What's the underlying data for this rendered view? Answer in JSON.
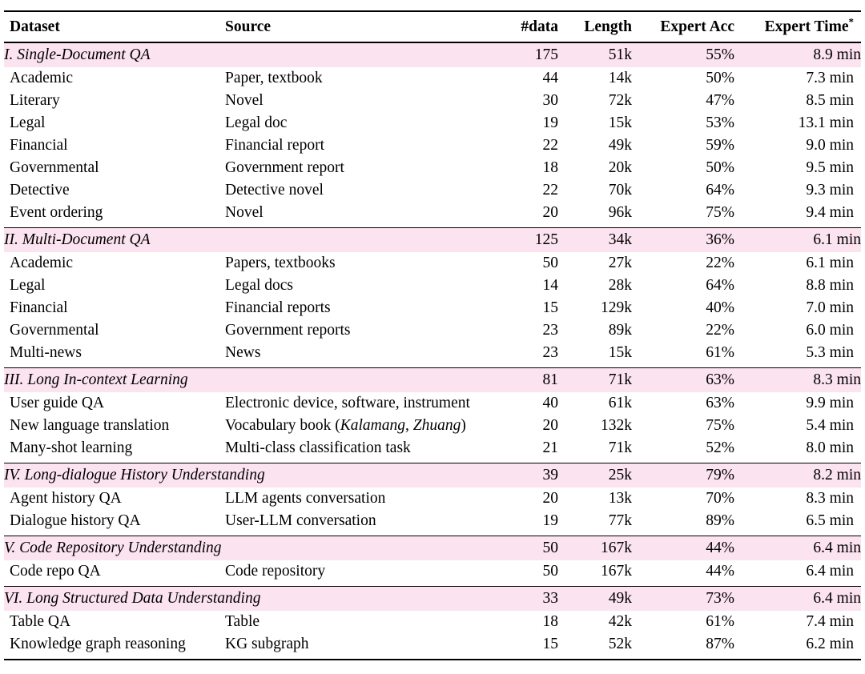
{
  "colors": {
    "section_row_bg": "#fbe3ef",
    "rule_color": "#000000",
    "text_color": "#000000"
  },
  "table": {
    "header": {
      "dataset": "Dataset",
      "source": "Source",
      "ndata": "#data",
      "length": "Length",
      "expert_acc": "Expert Acc",
      "expert_time": "Expert Time",
      "expert_time_sup": "*"
    },
    "sections": [
      {
        "title": "I. Single-Document QA",
        "ndata": "175",
        "length": "51k",
        "acc": "55%",
        "time": "8.9 min",
        "rows": [
          {
            "dataset": "Academic",
            "source": "Paper, textbook",
            "ndata": "44",
            "length": "14k",
            "acc": "50%",
            "time": "7.3 min"
          },
          {
            "dataset": "Literary",
            "source": "Novel",
            "ndata": "30",
            "length": "72k",
            "acc": "47%",
            "time": "8.5 min"
          },
          {
            "dataset": "Legal",
            "source": "Legal doc",
            "ndata": "19",
            "length": "15k",
            "acc": "53%",
            "time": "13.1 min"
          },
          {
            "dataset": "Financial",
            "source": "Financial report",
            "ndata": "22",
            "length": "49k",
            "acc": "59%",
            "time": "9.0 min"
          },
          {
            "dataset": "Governmental",
            "source": "Government report",
            "ndata": "18",
            "length": "20k",
            "acc": "50%",
            "time": "9.5 min"
          },
          {
            "dataset": "Detective",
            "source": "Detective novel",
            "ndata": "22",
            "length": "70k",
            "acc": "64%",
            "time": "9.3 min"
          },
          {
            "dataset": "Event ordering",
            "source": "Novel",
            "ndata": "20",
            "length": "96k",
            "acc": "75%",
            "time": "9.4 min"
          }
        ]
      },
      {
        "title": "II. Multi-Document QA",
        "ndata": "125",
        "length": "34k",
        "acc": "36%",
        "time": "6.1 min",
        "rows": [
          {
            "dataset": "Academic",
            "source": "Papers, textbooks",
            "ndata": "50",
            "length": "27k",
            "acc": "22%",
            "time": "6.1 min"
          },
          {
            "dataset": "Legal",
            "source": "Legal docs",
            "ndata": "14",
            "length": "28k",
            "acc": "64%",
            "time": "8.8 min"
          },
          {
            "dataset": "Financial",
            "source": "Financial reports",
            "ndata": "15",
            "length": "129k",
            "acc": "40%",
            "time": "7.0 min"
          },
          {
            "dataset": "Governmental",
            "source": "Government reports",
            "ndata": "23",
            "length": "89k",
            "acc": "22%",
            "time": "6.0 min"
          },
          {
            "dataset": "Multi-news",
            "source": "News",
            "ndata": "23",
            "length": "15k",
            "acc": "61%",
            "time": "5.3 min"
          }
        ]
      },
      {
        "title": "III. Long In-context Learning",
        "ndata": "81",
        "length": "71k",
        "acc": "63%",
        "time": "8.3 min",
        "rows": [
          {
            "dataset": "User guide QA",
            "source": "Electronic device, software, instrument",
            "ndata": "40",
            "length": "61k",
            "acc": "63%",
            "time": "9.9 min"
          },
          {
            "dataset": "New language translation",
            "source": [
              {
                "t": "Vocabulary book (",
                "i": false
              },
              {
                "t": "Kalamang",
                "i": true
              },
              {
                "t": ", ",
                "i": false
              },
              {
                "t": "Zhuang",
                "i": true
              },
              {
                "t": ")",
                "i": false
              }
            ],
            "ndata": "20",
            "length": "132k",
            "acc": "75%",
            "time": "5.4 min"
          },
          {
            "dataset": "Many-shot learning",
            "source": "Multi-class classification task",
            "ndata": "21",
            "length": "71k",
            "acc": "52%",
            "time": "8.0 min"
          }
        ]
      },
      {
        "title": "IV. Long-dialogue History Understanding",
        "ndata": "39",
        "length": "25k",
        "acc": "79%",
        "time": "8.2 min",
        "rows": [
          {
            "dataset": "Agent history QA",
            "source": "LLM agents conversation",
            "ndata": "20",
            "length": "13k",
            "acc": "70%",
            "time": "8.3 min"
          },
          {
            "dataset": "Dialogue history QA",
            "source": "User-LLM conversation",
            "ndata": "19",
            "length": "77k",
            "acc": "89%",
            "time": "6.5 min"
          }
        ]
      },
      {
        "title": "V. Code Repository Understanding",
        "ndata": "50",
        "length": "167k",
        "acc": "44%",
        "time": "6.4 min",
        "rows": [
          {
            "dataset": "Code repo QA",
            "source": "Code repository",
            "ndata": "50",
            "length": "167k",
            "acc": "44%",
            "time": "6.4 min"
          }
        ]
      },
      {
        "title": "VI. Long Structured Data Understanding",
        "ndata": "33",
        "length": "49k",
        "acc": "73%",
        "time": "6.4 min",
        "rows": [
          {
            "dataset": "Table QA",
            "source": "Table",
            "ndata": "18",
            "length": "42k",
            "acc": "61%",
            "time": "7.4 min"
          },
          {
            "dataset": "Knowledge graph reasoning",
            "source": "KG subgraph",
            "ndata": "15",
            "length": "52k",
            "acc": "87%",
            "time": "6.2 min"
          }
        ]
      }
    ]
  }
}
